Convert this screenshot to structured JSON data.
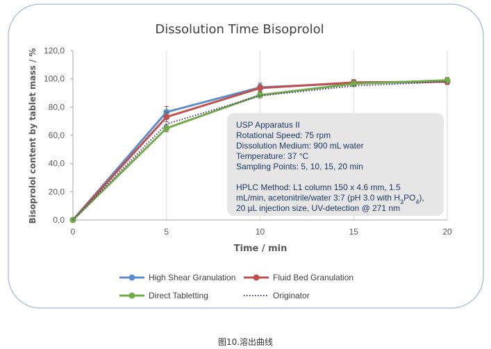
{
  "chart_data": {
    "type": "line",
    "title": "Dissolution Time Bisoprolol",
    "xlabel": "Time / min",
    "ylabel": "Bisoprolol content by tablet mass / %",
    "x_ticks": [
      "0",
      "5",
      "10",
      "15",
      "20"
    ],
    "y_ticks": [
      "0,0",
      "20,0",
      "40,0",
      "60,0",
      "80,0",
      "100,0",
      "120,0"
    ],
    "xlim": [
      0,
      20
    ],
    "ylim": [
      0,
      120
    ],
    "grid": "vertical",
    "legend_position": "bottom",
    "series": [
      {
        "name": "High Shear Granulation",
        "color": "#5B8DC9",
        "style": "solid-marker",
        "x": [
          0,
          5,
          10,
          15,
          20
        ],
        "y": [
          0,
          76.5,
          94,
          97,
          98
        ],
        "err": [
          0,
          4,
          3,
          2,
          2
        ]
      },
      {
        "name": "Fluid Bed Granulation",
        "color": "#C0504D",
        "style": "solid-marker",
        "x": [
          0,
          5,
          10,
          15,
          20
        ],
        "y": [
          0,
          73,
          93.5,
          97.5,
          98
        ],
        "err": [
          0,
          3.5,
          2.5,
          2,
          2
        ]
      },
      {
        "name": "Direct Tabletting",
        "color": "#72AC48",
        "style": "solid-marker",
        "x": [
          0,
          5,
          10,
          15,
          20
        ],
        "y": [
          0,
          65,
          88.5,
          96.5,
          99
        ],
        "err": [
          0,
          2.5,
          2,
          2,
          2
        ]
      },
      {
        "name": "Originator",
        "color": "#4B2C7F",
        "style": "dotted",
        "x": [
          0,
          5,
          10,
          15,
          20
        ],
        "y": [
          0,
          68,
          88,
          95,
          98
        ],
        "err": [
          0,
          0,
          0,
          0,
          0
        ]
      }
    ],
    "annotation_lines": [
      "USP Apparatus II",
      "Rotational Speed: 75 rpm",
      "Dissolution Medium: 900 mL water",
      "Temperature: 37 °C",
      "Sampling Points: 5, 10, 15, 20 min",
      "",
      "HPLC Method: L1 column 150 x 4.6 mm, 1.5",
      "mL/min, acetonitrile/water 3:7 (pH 3.0 with H₃PO₄),",
      "20 µL injection size, UV-detection @ 271 nm"
    ],
    "annotation_box_color": "#E6E6E6",
    "frame_border_color": "#A9C4E4"
  },
  "caption": "图10.溶出曲线"
}
